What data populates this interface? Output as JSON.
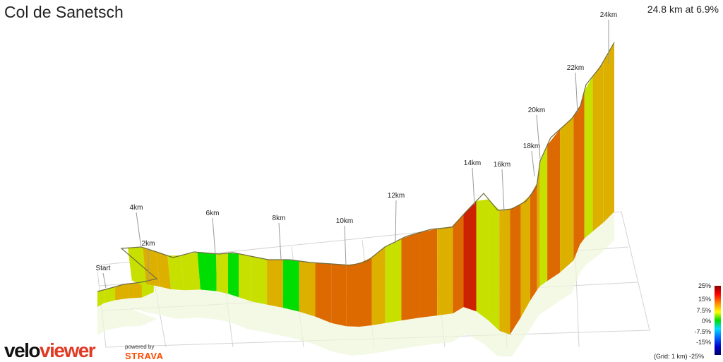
{
  "page": {
    "title": "Col de Sanetsch",
    "stats": "24.8 km at 6.9%"
  },
  "chart_data": {
    "type": "area",
    "title": "Col de Sanetsch",
    "summary": "24.8 km at 6.9%",
    "xlabel": "",
    "ylabel": "",
    "km_markers": [
      "Start",
      "2km",
      "4km",
      "6km",
      "8km",
      "10km",
      "12km",
      "14km",
      "16km",
      "18km",
      "20km",
      "22km",
      "24km"
    ],
    "legend": {
      "ticks": [
        "25%",
        "15%",
        "7.5%",
        "0%",
        "-7.5%",
        "-15%",
        "-25%"
      ],
      "colors": [
        "#8b0000",
        "#ff0000",
        "#ff8800",
        "#ffff00",
        "#00dd00",
        "#00ddff",
        "#0066ff",
        "#0000cc",
        "#000066"
      ],
      "grid_note": "(Grid: 1 km)"
    },
    "gradient_percent_by_segment": [
      3.5,
      4,
      7,
      6.5,
      5,
      1.5,
      2,
      4.5,
      5.5,
      6,
      3.5,
      1,
      -0.5,
      2,
      -1,
      4.5,
      3,
      5.5,
      0,
      7.5,
      9,
      12,
      11,
      10,
      6.5,
      5,
      11.5,
      9.5,
      7,
      10.5,
      14.5,
      5,
      4.5,
      8,
      11,
      7.5,
      9.5,
      6.5,
      3.5,
      8.5,
      7.5,
      11.5,
      9,
      4.5,
      6,
      8
    ]
  },
  "branding": {
    "logo_velo": "velo",
    "logo_viewer": "viewer",
    "powered_by": "powered by",
    "strava": "STRAVA"
  }
}
